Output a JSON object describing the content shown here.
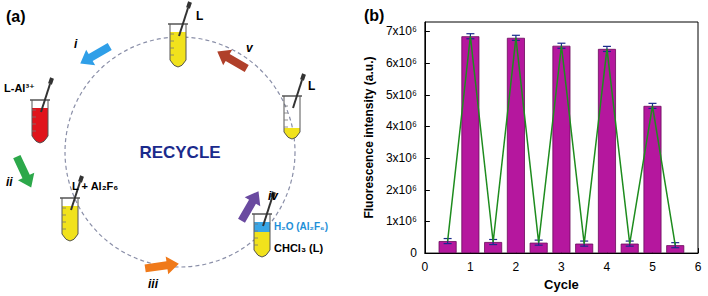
{
  "diagram": {
    "label": "(a)",
    "center": "RECYCLE",
    "nodes": [
      {
        "label": "L"
      },
      {
        "label": "L-Al³⁺"
      },
      {
        "label": "L + Al₂F₆"
      },
      {
        "label": "CHCl₃ (L)",
        "upper_label": "H₂O (Al₂F₆)"
      },
      {
        "label": "L"
      }
    ],
    "steps": [
      {
        "label": "i"
      },
      {
        "label": "ii"
      },
      {
        "label": "iii"
      },
      {
        "label": "iv"
      },
      {
        "label": "v"
      }
    ]
  },
  "chart_data": {
    "type": "bar",
    "title": "(b)",
    "x_label": "Cycle",
    "y_label": "Fluorescence intensity (a.u.)",
    "x": [
      0.5,
      1,
      1.5,
      2,
      2.5,
      3,
      3.5,
      4,
      4.5,
      5,
      5.5
    ],
    "series": [
      {
        "type": "bar",
        "color": "#b5179e",
        "values": [
          380000,
          6850000,
          350000,
          6800000,
          330000,
          6550000,
          300000,
          6450000,
          300000,
          4650000,
          250000
        ],
        "errors": [
          80000,
          80000,
          80000,
          80000,
          80000,
          80000,
          80000,
          80000,
          80000,
          80000,
          80000
        ]
      },
      {
        "type": "line",
        "color": "#1e8c1e",
        "values": [
          380000,
          6850000,
          350000,
          6800000,
          330000,
          6550000,
          300000,
          6450000,
          300000,
          4650000,
          250000
        ]
      }
    ],
    "xlim": [
      0,
      6
    ],
    "xticks": [
      0,
      1,
      2,
      3,
      4,
      5,
      6
    ],
    "ylim": [
      0,
      7300000
    ],
    "yticks": [
      0,
      {
        "value": 1000000,
        "label": "1x10⁶"
      },
      {
        "value": 2000000,
        "label": "2x10⁶"
      },
      {
        "value": 3000000,
        "label": "3x10⁶"
      },
      {
        "value": 4000000,
        "label": "4x10⁶"
      },
      {
        "value": 5000000,
        "label": "5x10⁶"
      },
      {
        "value": 6000000,
        "label": "6x10⁶"
      },
      {
        "value": 7000000,
        "label": "7x10⁶"
      }
    ],
    "grid": false
  }
}
